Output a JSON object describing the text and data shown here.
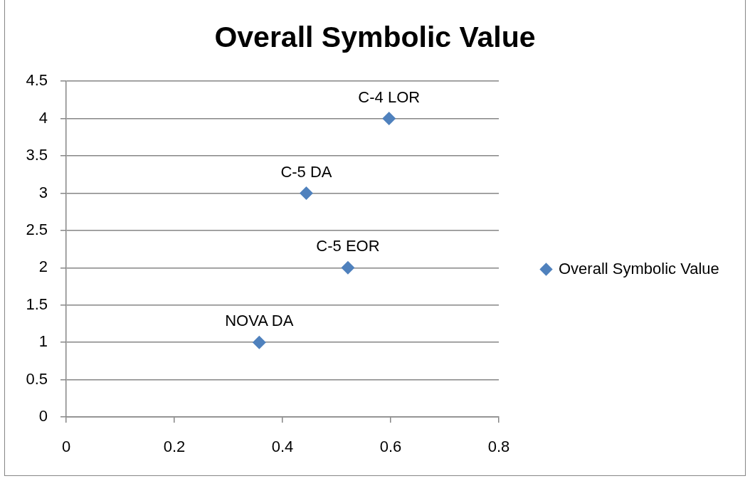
{
  "chart_data": {
    "type": "scatter",
    "title": "Overall Symbolic Value",
    "series": [
      {
        "name": "Overall Symbolic Value",
        "color": "#4f81bd",
        "x": [
          0.357,
          0.521,
          0.444,
          0.597
        ],
        "values": [
          1,
          2,
          3,
          4
        ]
      }
    ],
    "xlim": [
      0,
      0.8
    ],
    "xticks": [
      0,
      0.2,
      0.4,
      0.6,
      0.8
    ],
    "ylim": [
      0,
      4.5
    ],
    "yticks": [
      0,
      0.5,
      1,
      1.5,
      2,
      2.5,
      3,
      3.5,
      4,
      4.5
    ],
    "grid": "y",
    "legend": "right",
    "marker": "diamond",
    "annotations": [
      {
        "text": "NOVA DA",
        "x": 0.357,
        "y": 1
      },
      {
        "text": "C-5 EOR",
        "x": 0.521,
        "y": 2
      },
      {
        "text": "C-5 DA",
        "x": 0.444,
        "y": 3
      },
      {
        "text": "C-4 LOR",
        "x": 0.597,
        "y": 4
      }
    ]
  }
}
